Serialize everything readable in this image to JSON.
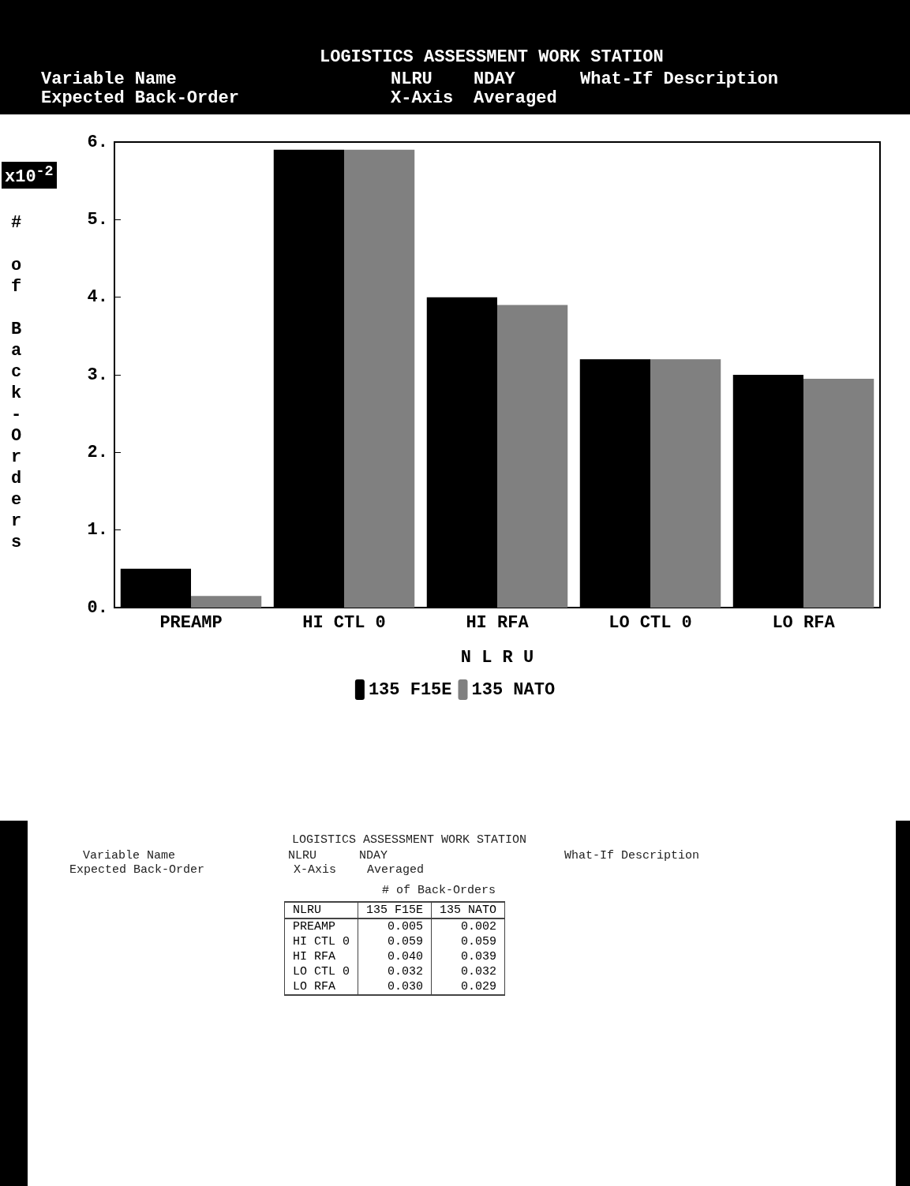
{
  "chart_data": {
    "type": "bar",
    "title": "LOGISTICS ASSESSMENT WORK STATION",
    "xlabel": "N L R U",
    "ylabel": "# of Back-Orders",
    "categories": [
      "PREAMP",
      "HI CTL 0",
      "HI RFA",
      "LO CTL 0",
      "LO RFA"
    ],
    "series": [
      {
        "name": "135 F15E",
        "color": "#000000",
        "values": [
          0.5,
          5.9,
          4.0,
          3.2,
          3.0
        ]
      },
      {
        "name": "135 NATO",
        "color": "#808080",
        "values": [
          0.15,
          5.9,
          3.9,
          3.2,
          2.95
        ]
      }
    ],
    "ylim": [
      0,
      6
    ],
    "yticks": [
      {
        "value": 0,
        "label": "0."
      },
      {
        "value": 1,
        "label": "1."
      },
      {
        "value": 2,
        "label": "2."
      },
      {
        "value": 3,
        "label": "3."
      },
      {
        "value": 4,
        "label": "4."
      },
      {
        "value": 5,
        "label": "5."
      },
      {
        "value": 6,
        "label": "6."
      }
    ],
    "legend": "bottom",
    "grid": false,
    "annotations": [
      "x10$^{-2}$",
      "Variable Name",
      "Expected Back-Order",
      "NLRU",
      "X-Axis",
      "NDAY",
      "Averaged",
      "What-If Description",
      "LOGISTICS ASSESSMENT WORK STATION",
      "Variable Name",
      "Expected Back-Order",
      "NLRU",
      "X-Axis",
      "NDAY",
      "Averaged",
      "What-If Description",
      "# of Back-Orders",
      "NLRU",
      "0.005",
      "0.002",
      "0.059",
      "0.059",
      "0.040",
      "0.039",
      "0.032",
      "0.032",
      "0.030",
      "0.029"
    ]
  }
}
